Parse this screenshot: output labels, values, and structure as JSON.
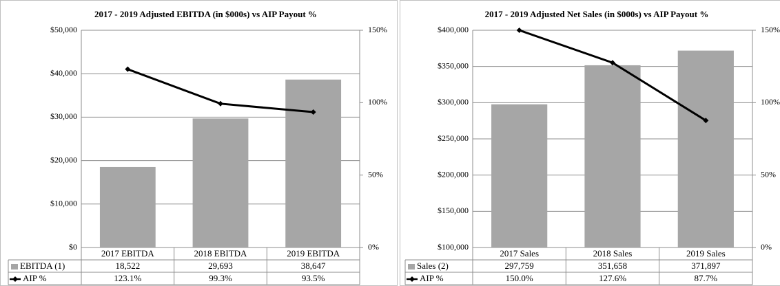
{
  "chart_data": [
    {
      "type": "bar-line",
      "title": "2017 - 2019 Adjusted EBITDA (in $000s) vs AIP Payout %",
      "categories": [
        "2017 EBITDA",
        "2018 EBITDA",
        "2019 EBITDA"
      ],
      "series": [
        {
          "name": "EBITDA (1)",
          "type": "bar",
          "color": "#a6a6a6",
          "values": [
            18522,
            29693,
            38647
          ],
          "value_labels": [
            "18,522",
            "29,693",
            "38,647"
          ]
        },
        {
          "name": "AIP %",
          "type": "line",
          "axis": "y2",
          "color": "#000000",
          "values": [
            123.1,
            99.3,
            93.5
          ],
          "value_labels": [
            "123.1%",
            "99.3%",
            "93.5%"
          ]
        }
      ],
      "ylim": [
        0,
        50000
      ],
      "yticks": [
        {
          "value": 0,
          "label": "$0"
        },
        {
          "value": 10000,
          "label": "$10,000"
        },
        {
          "value": 20000,
          "label": "$20,000"
        },
        {
          "value": 30000,
          "label": "$30,000"
        },
        {
          "value": 40000,
          "label": "$40,000"
        },
        {
          "value": 50000,
          "label": "$50,000"
        }
      ],
      "y2lim": [
        0,
        150
      ],
      "y2ticks": [
        {
          "value": 0,
          "label": "0%"
        },
        {
          "value": 50,
          "label": "50%"
        },
        {
          "value": 100,
          "label": "100%"
        },
        {
          "value": 150,
          "label": "150%"
        }
      ],
      "grid": true
    },
    {
      "type": "bar-line",
      "title": "2017 - 2019 Adjusted Net Sales (in $000s) vs AIP Payout %",
      "categories": [
        "2017 Sales",
        "2018 Sales",
        "2019 Sales"
      ],
      "series": [
        {
          "name": "Sales (2)",
          "type": "bar",
          "color": "#a6a6a6",
          "values": [
            297759,
            351658,
            371897
          ],
          "value_labels": [
            "297,759",
            "351,658",
            "371,897"
          ]
        },
        {
          "name": "AIP %",
          "type": "line",
          "axis": "y2",
          "color": "#000000",
          "values": [
            150.0,
            127.6,
            87.7
          ],
          "value_labels": [
            "150.0%",
            "127.6%",
            "87.7%"
          ]
        }
      ],
      "ylim": [
        100000,
        400000
      ],
      "yticks": [
        {
          "value": 100000,
          "label": "$100,000"
        },
        {
          "value": 150000,
          "label": "$150,000"
        },
        {
          "value": 200000,
          "label": "$200,000"
        },
        {
          "value": 250000,
          "label": "$250,000"
        },
        {
          "value": 300000,
          "label": "$300,000"
        },
        {
          "value": 350000,
          "label": "$350,000"
        },
        {
          "value": 400000,
          "label": "$400,000"
        }
      ],
      "y2lim": [
        0,
        150
      ],
      "y2ticks": [
        {
          "value": 0,
          "label": "0%"
        },
        {
          "value": 50,
          "label": "50%"
        },
        {
          "value": 100,
          "label": "100%"
        },
        {
          "value": 150,
          "label": "150%"
        }
      ],
      "grid": true
    }
  ]
}
